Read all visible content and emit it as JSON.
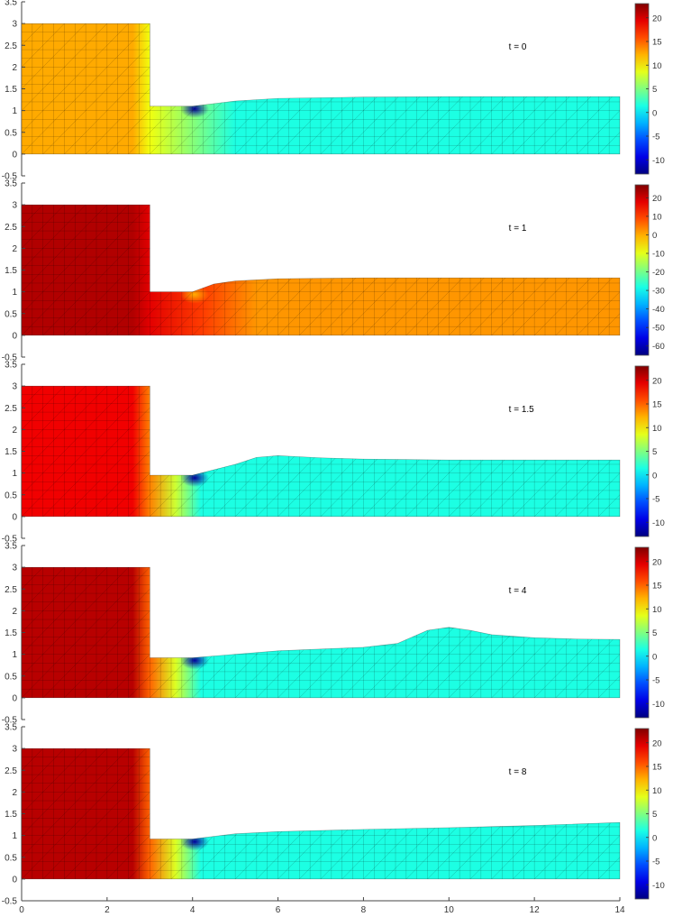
{
  "chart_data": {
    "type": "heatmap",
    "x_range": [
      0,
      14
    ],
    "y_range": [
      -0.5,
      3.5
    ],
    "y_ticks": [
      "-0.5",
      "0",
      "0.5",
      "1",
      "1.5",
      "2",
      "2.5",
      "3",
      "3.5"
    ],
    "x_ticks": [
      "0",
      "2",
      "4",
      "6",
      "8",
      "10",
      "12",
      "14"
    ],
    "colormap": "jet",
    "panels": [
      {
        "label": "t = 0",
        "colorbar_range": [
          -13,
          23
        ],
        "colorbar_ticks": [
          -10,
          -5,
          0,
          5,
          10,
          15,
          20
        ],
        "reservoir_value": 12.5,
        "near_step_value": 9,
        "channel_value": 1.5,
        "ramp_end_x": 5,
        "hotspot_value": -12,
        "channel_height_left": 1.1,
        "surface": [
          [
            3,
            1.1
          ],
          [
            4,
            1.1
          ],
          [
            5,
            1.22
          ],
          [
            6,
            1.28
          ],
          [
            8,
            1.31
          ],
          [
            10,
            1.32
          ],
          [
            12,
            1.32
          ],
          [
            14,
            1.32
          ]
        ]
      },
      {
        "label": "t = 1",
        "colorbar_range": [
          -65,
          27
        ],
        "colorbar_ticks": [
          -60,
          -50,
          -40,
          -30,
          -20,
          -10,
          0,
          10,
          20
        ],
        "reservoir_value": 22.5,
        "near_step_value": 18,
        "channel_value": 2,
        "ramp_end_x": 5.5,
        "hotspot_value": 0,
        "channel_height_left": 1.0,
        "surface": [
          [
            3,
            1.0
          ],
          [
            4,
            1.0
          ],
          [
            4.5,
            1.18
          ],
          [
            5,
            1.25
          ],
          [
            6,
            1.3
          ],
          [
            8,
            1.32
          ],
          [
            10,
            1.32
          ],
          [
            12,
            1.32
          ],
          [
            14,
            1.32
          ]
        ]
      },
      {
        "label": "t = 1.5",
        "colorbar_range": [
          -13,
          23
        ],
        "colorbar_ticks": [
          -10,
          -5,
          0,
          5,
          10,
          15,
          20
        ],
        "reservoir_value": 19,
        "near_step_value": 14,
        "channel_value": 1.5,
        "ramp_end_x": 4.2,
        "hotspot_value": -12,
        "channel_height_left": 0.95,
        "surface": [
          [
            3,
            0.95
          ],
          [
            4,
            0.95
          ],
          [
            5,
            1.2
          ],
          [
            5.5,
            1.36
          ],
          [
            6,
            1.4
          ],
          [
            7,
            1.35
          ],
          [
            8,
            1.32
          ],
          [
            10,
            1.3
          ],
          [
            12,
            1.3
          ],
          [
            14,
            1.3
          ]
        ]
      },
      {
        "label": "t = 4",
        "colorbar_range": [
          -13,
          23
        ],
        "colorbar_ticks": [
          -10,
          -5,
          0,
          5,
          10,
          15,
          20
        ],
        "reservoir_value": 21,
        "near_step_value": 15,
        "channel_value": 1.5,
        "ramp_end_x": 4.2,
        "hotspot_value": -12,
        "channel_height_left": 0.92,
        "surface": [
          [
            3,
            0.92
          ],
          [
            4,
            0.92
          ],
          [
            5,
            1.0
          ],
          [
            6,
            1.08
          ],
          [
            7,
            1.12
          ],
          [
            8,
            1.16
          ],
          [
            8.8,
            1.25
          ],
          [
            9.5,
            1.55
          ],
          [
            10,
            1.62
          ],
          [
            10.5,
            1.55
          ],
          [
            11,
            1.45
          ],
          [
            12,
            1.38
          ],
          [
            13,
            1.35
          ],
          [
            14,
            1.34
          ]
        ]
      },
      {
        "label": "t = 8",
        "colorbar_range": [
          -13,
          23
        ],
        "colorbar_ticks": [
          -10,
          -5,
          0,
          5,
          10,
          15,
          20
        ],
        "reservoir_value": 21,
        "near_step_value": 15,
        "channel_value": 1.5,
        "ramp_end_x": 4.2,
        "hotspot_value": -12,
        "channel_height_left": 0.92,
        "surface": [
          [
            3,
            0.92
          ],
          [
            4,
            0.92
          ],
          [
            5,
            1.04
          ],
          [
            6,
            1.09
          ],
          [
            8,
            1.14
          ],
          [
            10,
            1.18
          ],
          [
            12,
            1.23
          ],
          [
            14,
            1.3
          ]
        ]
      }
    ]
  }
}
